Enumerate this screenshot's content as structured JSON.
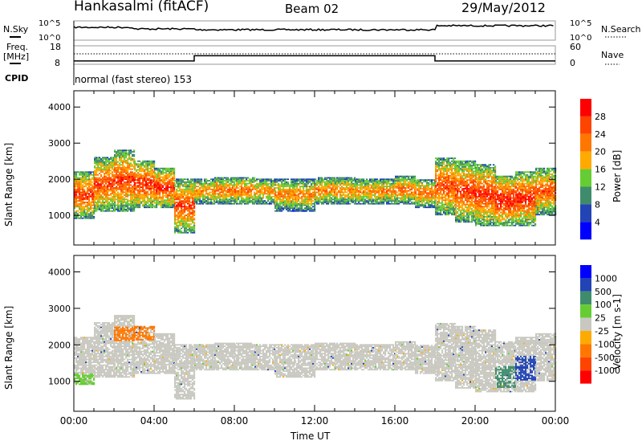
{
  "header": {
    "title": "Hankasalmi (fitACF)",
    "beam": "Beam 02",
    "date": "29/May/2012"
  },
  "nsky_panel": {
    "left_label": "N.Sky",
    "right_label": "N.Search",
    "ticks_left": [
      "10^5",
      "10^0"
    ],
    "ticks_right": [
      "10^5",
      "10^0"
    ]
  },
  "freq_panel": {
    "left_label_1": "Freq.",
    "left_label_2": "[MHz]",
    "right_label": "Nave",
    "ticks_left": [
      "18",
      "8"
    ],
    "ticks_right": [
      "60",
      "0"
    ],
    "freq_mhz": [
      {
        "from": 0,
        "to": 6,
        "value": 9.8
      },
      {
        "from": 6,
        "to": 18,
        "value": 12.6
      },
      {
        "from": 18,
        "to": 24,
        "value": 9.8
      }
    ],
    "nave": 32
  },
  "cpid": {
    "label": "CPID",
    "value": "normal (fast stereo) 153"
  },
  "colors": {
    "power": [
      "#0000ff",
      "#2244b4",
      "#3f8c6c",
      "#66cc33",
      "#ffaa00",
      "#ff7700",
      "#ff4400",
      "#ff0000"
    ],
    "velocity": [
      "#0000ff",
      "#2244b4",
      "#3f8c6c",
      "#66cc33",
      "#c8c8c0",
      "#ffaa00",
      "#ff7700",
      "#ff4400",
      "#ff0000"
    ]
  },
  "chart_data": [
    {
      "type": "heatmap",
      "title": "Power",
      "ylabel": "Slant Range [km]",
      "xlabel": "Time UT",
      "ylim": [
        180,
        4600
      ],
      "yticks": [
        "4000",
        "3000",
        "2000",
        "1000"
      ],
      "xticks": [
        "00:00",
        "04:00",
        "08:00",
        "12:00",
        "16:00",
        "20:00",
        "00:00"
      ],
      "colorbar": {
        "label": "Power [dB]",
        "ticks": [
          "28",
          "24",
          "20",
          "16",
          "12",
          "8",
          "4"
        ]
      },
      "bands": [
        [
          0,
          900,
          2200,
          28
        ],
        [
          1,
          1100,
          2600,
          27
        ],
        [
          2,
          1100,
          2800,
          28
        ],
        [
          3,
          1200,
          2500,
          29
        ],
        [
          4,
          1200,
          2300,
          29
        ],
        [
          5,
          500,
          2000,
          27
        ],
        [
          6,
          1300,
          2000,
          22
        ],
        [
          7,
          1300,
          2050,
          24
        ],
        [
          8,
          1300,
          2050,
          24
        ],
        [
          9,
          1300,
          2000,
          22
        ],
        [
          10,
          1100,
          2000,
          22
        ],
        [
          11,
          1100,
          2000,
          22
        ],
        [
          12,
          1300,
          2050,
          23
        ],
        [
          13,
          1300,
          2050,
          22
        ],
        [
          14,
          1300,
          2000,
          22
        ],
        [
          15,
          1300,
          2000,
          23
        ],
        [
          16,
          1300,
          2100,
          24
        ],
        [
          17,
          1200,
          2000,
          24
        ],
        [
          18,
          1000,
          2600,
          27
        ],
        [
          19,
          800,
          2500,
          28
        ],
        [
          20,
          700,
          2400,
          29
        ],
        [
          21,
          700,
          2100,
          30
        ],
        [
          22,
          700,
          2200,
          29
        ],
        [
          23,
          1000,
          2300,
          26
        ]
      ]
    },
    {
      "type": "heatmap",
      "title": "Velocity",
      "ylabel": "Slant Range [km]",
      "xlabel": "Time UT",
      "ylim": [
        180,
        4600
      ],
      "yticks": [
        "4000",
        "3000",
        "2000",
        "1000"
      ],
      "xticks": [
        "00:00",
        "04:00",
        "08:00",
        "12:00",
        "16:00",
        "20:00",
        "00:00"
      ],
      "colorbar": {
        "label": "Velocity [m s-1]",
        "ticks": [
          "1000",
          "500",
          "100",
          "25",
          "-25",
          "-100",
          "-500",
          "-1000"
        ]
      },
      "features": [
        [
          0,
          1,
          900,
          1200,
          3
        ],
        [
          2,
          4,
          2100,
          2500,
          6
        ],
        [
          21,
          22,
          800,
          1400,
          2
        ],
        [
          22,
          23,
          1000,
          1700,
          1
        ]
      ]
    }
  ]
}
